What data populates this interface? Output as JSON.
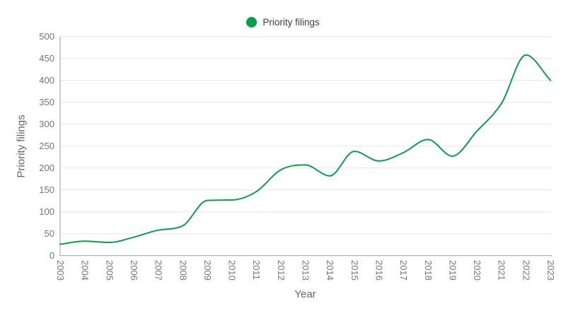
{
  "legend": {
    "items": [
      {
        "label": "Priority filings",
        "color": "#0c9c4f"
      }
    ]
  },
  "y_axis": {
    "title": "Priority filings",
    "tick_labels": [
      "0",
      "50",
      "100",
      "150",
      "200",
      "250",
      "300",
      "350",
      "400",
      "450",
      "500"
    ]
  },
  "x_axis": {
    "title": "Year",
    "tick_labels": [
      "2003",
      "2004",
      "2005",
      "2006",
      "2007",
      "2008",
      "2009",
      "2010",
      "2011",
      "2012",
      "2013",
      "2014",
      "2015",
      "2016",
      "2017",
      "2018",
      "2019",
      "2020",
      "2021",
      "2022",
      "2023"
    ]
  },
  "chart_data": {
    "type": "line",
    "title": "",
    "categories": [
      "2003",
      "2004",
      "2005",
      "2006",
      "2007",
      "2008",
      "2009",
      "2010",
      "2011",
      "2012",
      "2013",
      "2014",
      "2015",
      "2016",
      "2017",
      "2018",
      "2019",
      "2020",
      "2021",
      "2022",
      "2023"
    ],
    "series": [
      {
        "name": "Priority filings",
        "color": "#0c9c4f",
        "values": [
          26,
          33,
          30,
          42,
          58,
          68,
          126,
          127,
          146,
          196,
          207,
          182,
          238,
          216,
          235,
          265,
          227,
          284,
          347,
          458,
          400
        ]
      }
    ],
    "xlabel": "Year",
    "ylabel": "Priority filings",
    "ylim": [
      0,
      500
    ],
    "ytick_step": 50,
    "grid": true,
    "legend_position": "top-center",
    "line_style": "smooth",
    "markers": false
  },
  "colors": {
    "line": "#0c9c4f",
    "grid": "#e6e6e6",
    "axis": "#9e9e9e",
    "tick_text": "#757575",
    "axis_title_text": "#666666",
    "legend_text": "#404040",
    "background": "#ffffff"
  }
}
